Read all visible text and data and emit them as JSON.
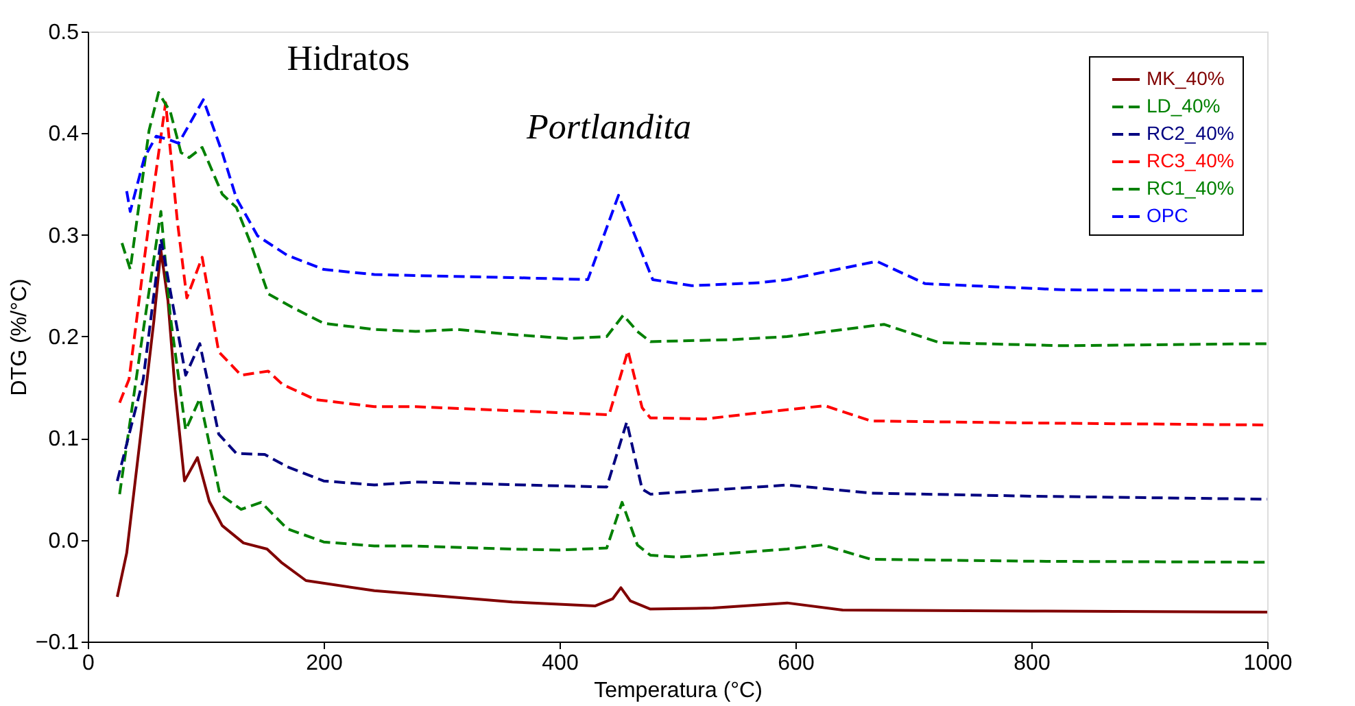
{
  "chart_data": {
    "type": "line",
    "xlabel": "Temperatura (°C)",
    "ylabel": "DTG (%/°C)",
    "xlim": [
      0,
      1000
    ],
    "xticks": [
      0,
      200,
      400,
      600,
      800,
      1000
    ],
    "ylim": [
      -0.1,
      0.5
    ],
    "yticks": [
      -0.1,
      {
        "value": 0,
        "label": "0.0"
      },
      0.1,
      0.2,
      0.3,
      0.4,
      0.5
    ],
    "grid": false,
    "legend": "top right",
    "annotations": [
      "Hidratos",
      "Portlandita"
    ],
    "series": [
      {
        "name": "MK_40%",
        "color": "#800000",
        "line_style": "solid",
        "x": [
          25,
          33,
          44,
          56,
          62,
          68,
          74,
          82,
          93,
          103,
          114,
          132,
          152,
          164,
          185,
          243,
          360,
          430,
          445,
          452,
          460,
          477,
          530,
          593,
          640,
          800,
          1000
        ],
        "values": [
          -0.056,
          -0.013,
          0.095,
          0.215,
          0.285,
          0.235,
          0.148,
          0.058,
          0.081,
          0.038,
          0.014,
          -0.003,
          -0.009,
          -0.022,
          -0.04,
          -0.05,
          -0.061,
          -0.065,
          -0.058,
          -0.047,
          -0.06,
          -0.068,
          -0.067,
          -0.062,
          -0.069,
          -0.07,
          -0.071
        ]
      },
      {
        "name": "LD_40%",
        "color": "#008000",
        "line_style": "dashed",
        "x": [
          27,
          45,
          62,
          70,
          83,
          95,
          112,
          130,
          147,
          169,
          200,
          243,
          278,
          360,
          400,
          440,
          453,
          466,
          477,
          500,
          593,
          623,
          664,
          800,
          1000
        ],
        "values": [
          0.045,
          0.19,
          0.323,
          0.22,
          0.108,
          0.139,
          0.045,
          0.03,
          0.037,
          0.011,
          -0.002,
          -0.006,
          -0.006,
          -0.009,
          -0.01,
          -0.008,
          0.037,
          -0.005,
          -0.015,
          -0.017,
          -0.009,
          -0.005,
          -0.019,
          -0.021,
          -0.022
        ]
      },
      {
        "name": "RC2_40%",
        "color": "#000080",
        "line_style": "dashed",
        "x": [
          25,
          47,
          62,
          83,
          95,
          111,
          126,
          150,
          169,
          200,
          243,
          278,
          371,
          440,
          457,
          470,
          477,
          593,
          664,
          800,
          1000
        ],
        "values": [
          0.058,
          0.158,
          0.296,
          0.162,
          0.193,
          0.104,
          0.085,
          0.084,
          0.072,
          0.058,
          0.054,
          0.057,
          0.054,
          0.052,
          0.116,
          0.05,
          0.045,
          0.054,
          0.046,
          0.043,
          0.04
        ]
      },
      {
        "name": "RC3_40%",
        "color": "#ff0000",
        "line_style": "dashed",
        "x": [
          27,
          35,
          52,
          66,
          76,
          84,
          97,
          111,
          130,
          153,
          165,
          193,
          243,
          278,
          383,
          442,
          458,
          470,
          477,
          523,
          593,
          625,
          664,
          800,
          1000
        ],
        "values": [
          0.135,
          0.158,
          0.313,
          0.43,
          0.313,
          0.238,
          0.278,
          0.185,
          0.162,
          0.166,
          0.153,
          0.138,
          0.131,
          0.131,
          0.126,
          0.123,
          0.186,
          0.13,
          0.12,
          0.119,
          0.128,
          0.132,
          0.117,
          0.115,
          0.113
        ]
      },
      {
        "name": "RC1_40%",
        "color": "#008000",
        "line_style": "dashed",
        "x": [
          29,
          36,
          52,
          60,
          70,
          79,
          86,
          97,
          114,
          126,
          138,
          153,
          173,
          200,
          243,
          278,
          313,
          360,
          407,
          440,
          454,
          466,
          477,
          547,
          593,
          675,
          722,
          827,
          1000
        ],
        "values": [
          0.292,
          0.266,
          0.403,
          0.44,
          0.421,
          0.381,
          0.376,
          0.386,
          0.34,
          0.327,
          0.292,
          0.242,
          0.229,
          0.213,
          0.207,
          0.205,
          0.207,
          0.202,
          0.198,
          0.2,
          0.221,
          0.205,
          0.195,
          0.197,
          0.2,
          0.212,
          0.194,
          0.191,
          0.193
        ]
      },
      {
        "name": "OPC",
        "color": "#0000ff",
        "line_style": "dashed",
        "x": [
          33,
          36,
          48,
          58,
          68,
          77,
          98,
          114,
          126,
          144,
          169,
          200,
          243,
          278,
          360,
          424,
          450,
          479,
          512,
          570,
          593,
          669,
          710,
          827,
          1000
        ],
        "values": [
          0.343,
          0.323,
          0.376,
          0.397,
          0.394,
          0.39,
          0.433,
          0.381,
          0.336,
          0.299,
          0.28,
          0.266,
          0.261,
          0.26,
          0.258,
          0.256,
          0.339,
          0.256,
          0.25,
          0.253,
          0.256,
          0.274,
          0.252,
          0.246,
          0.245
        ]
      }
    ]
  }
}
